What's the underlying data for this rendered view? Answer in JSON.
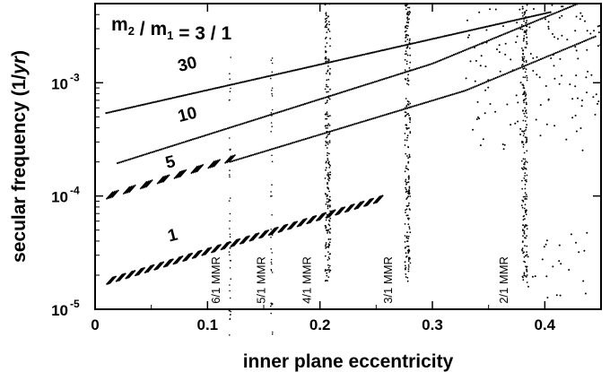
{
  "chart_data": {
    "type": "scatter",
    "title": {
      "m2": "m",
      "m2_sub": "2",
      "sep": " / ",
      "m1": "m",
      "m1_sub": "1",
      "ratio": " = 3 / 1"
    },
    "xlabel": "inner plane eccentricity",
    "ylabel_main": "secular frequency (1/",
    "ylabel_unit": "yr",
    "ylabel_close": ")",
    "xlim": [
      0,
      0.45
    ],
    "ylim": [
      1e-05,
      0.005
    ],
    "yscale": "log",
    "x_ticks": [
      {
        "value": 0,
        "label": "0"
      },
      {
        "value": 0.1,
        "label": "0.1"
      },
      {
        "value": 0.2,
        "label": "0.2"
      },
      {
        "value": 0.3,
        "label": "0.3"
      },
      {
        "value": 0.4,
        "label": "0.4"
      }
    ],
    "y_ticks": [
      {
        "value": 1e-05,
        "base": "10",
        "exp": "-5"
      },
      {
        "value": 0.0001,
        "base": "10",
        "exp": "-4"
      },
      {
        "value": 0.001,
        "base": "10",
        "exp": "-3"
      }
    ],
    "series": [
      {
        "name": "30",
        "e0": 0.01,
        "f0": 0.00054,
        "e1": 0.405,
        "f1": 0.0042
      },
      {
        "name": "10",
        "e0": 0.02,
        "f0": 0.000195,
        "e1": 0.445,
        "f1": 0.0042
      },
      {
        "name": "5",
        "e0": 0.01,
        "f0": 9.35e-05,
        "e1": 0.445,
        "f1": 0.0019
      },
      {
        "name": "1",
        "e0": 0.01,
        "f0": 1.65e-05,
        "e1": 0.255,
        "f1": 9e-05
      }
    ],
    "series_labels": [
      {
        "text": "30",
        "e": 0.075,
        "f": 0.00125
      },
      {
        "text": "10",
        "e": 0.075,
        "f": 0.00045
      },
      {
        "text": "5",
        "e": 0.064,
        "f": 0.000175
      },
      {
        "text": "1",
        "e": 0.066,
        "f": 3.95e-05
      }
    ],
    "resonances": [
      {
        "label": "6/1 MMR",
        "e": 0.12,
        "label_e": 0.111,
        "label_f": 1.12e-05
      },
      {
        "label": "5/1 MMR",
        "e": 0.157,
        "label_e": 0.151,
        "label_f": 1.12e-05
      },
      {
        "label": "4/1 MMR",
        "e": 0.207,
        "label_e": 0.192,
        "label_f": 1.12e-05
      },
      {
        "label": "3/1 MMR",
        "e": 0.278,
        "label_e": 0.264,
        "label_f": 1.12e-05
      },
      {
        "label": "2/1 MMR",
        "e": 0.382,
        "label_e": 0.367,
        "label_f": 1.12e-05
      }
    ],
    "grid": false,
    "legend": "none"
  }
}
